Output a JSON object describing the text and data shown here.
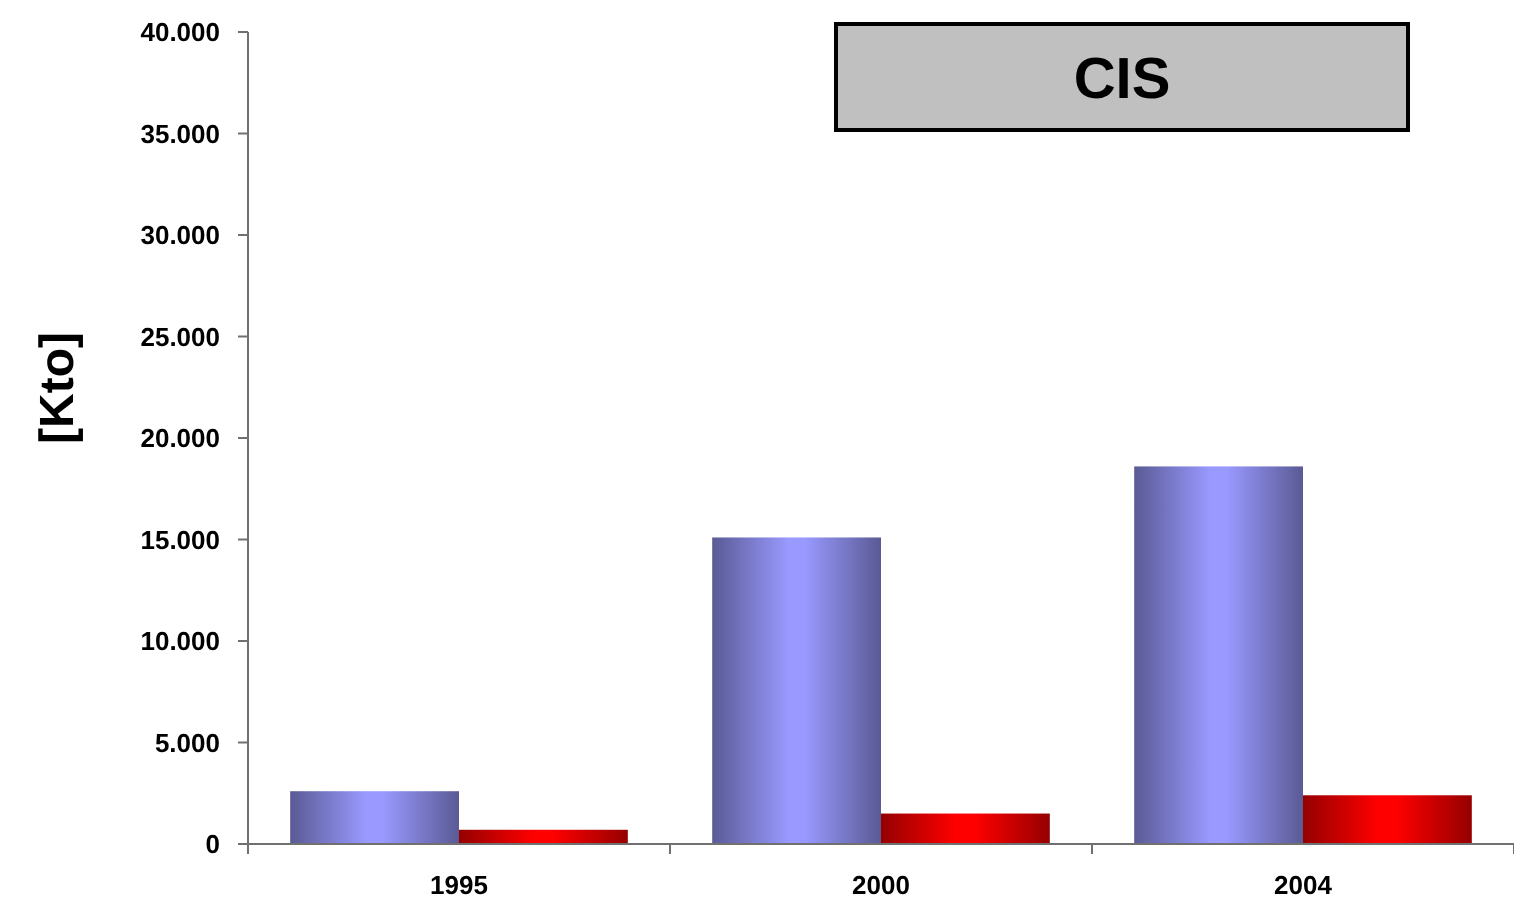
{
  "chart_data": {
    "type": "bar",
    "title": "CIS",
    "ylabel": "[Kto]",
    "categories": [
      "1995",
      "2000",
      "2004"
    ],
    "series": [
      {
        "color": "#9999ff",
        "values": [
          2600,
          15100,
          18600
        ]
      },
      {
        "color": "#ff0000",
        "values": [
          700,
          1500,
          2400
        ]
      }
    ],
    "ylim": [
      0,
      40000
    ],
    "yticks": [
      0,
      {
        "value": 5000,
        "label": "5.000"
      },
      {
        "value": 10000,
        "label": "10.000"
      },
      {
        "value": 15000,
        "label": "15.000"
      },
      {
        "value": 20000,
        "label": "20.000"
      },
      {
        "value": 25000,
        "label": "25.000"
      },
      {
        "value": 30000,
        "label": "30.000"
      },
      {
        "value": 35000,
        "label": "35.000"
      },
      {
        "value": 40000,
        "label": "40.000"
      }
    ],
    "grid": false
  }
}
